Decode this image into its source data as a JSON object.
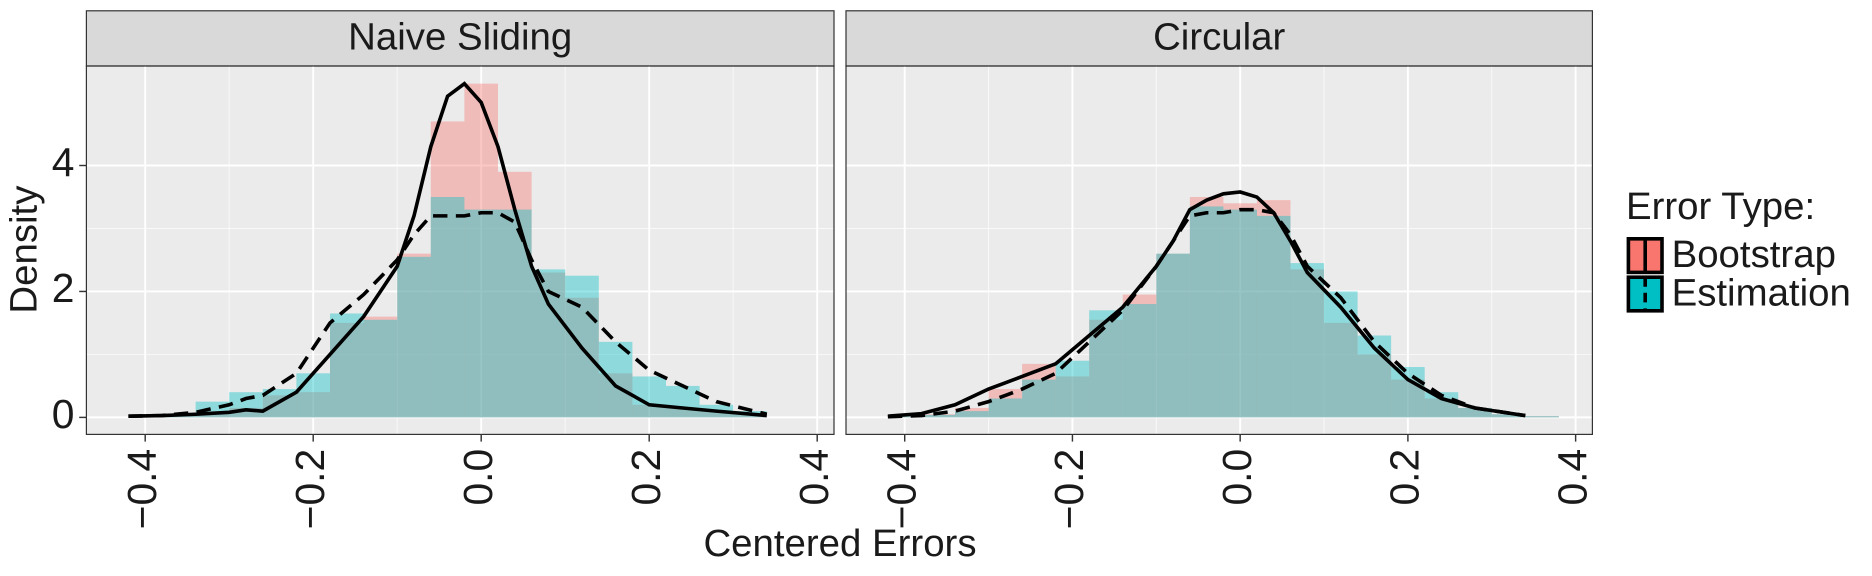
{
  "x_label": "Centered Errors",
  "y_label": "Density",
  "legend_title": "Error Type:",
  "chart_data": [
    {
      "type": "histogram",
      "title": "Naive Sliding",
      "bins": [
        -0.42,
        -0.38,
        -0.34,
        -0.3,
        -0.26,
        -0.22,
        -0.18,
        -0.14,
        -0.1,
        -0.06,
        -0.02,
        0.02,
        0.06,
        0.1,
        0.14,
        0.18,
        0.22,
        0.26,
        0.3,
        0.34,
        0.38
      ],
      "xlim": [
        -0.47,
        0.42
      ],
      "ylim": [
        -0.27,
        5.58
      ],
      "xticks": [
        {
          "value": -0.4,
          "label": "−0.4"
        },
        {
          "value": -0.2,
          "label": "−0.2"
        },
        {
          "value": 0,
          "label": "0.0"
        },
        {
          "value": 0.2,
          "label": "0.2"
        },
        {
          "value": 0.4,
          "label": "0.4"
        }
      ],
      "yticks": [
        0,
        2,
        4
      ],
      "grid": true,
      "density_x": [
        -0.42,
        -0.38,
        -0.34,
        -0.3,
        -0.28,
        -0.26,
        -0.22,
        -0.18,
        -0.14,
        -0.1,
        -0.08,
        -0.06,
        -0.04,
        -0.02,
        0.0,
        0.02,
        0.04,
        0.06,
        0.08,
        0.12,
        0.16,
        0.2,
        0.24,
        0.28,
        0.34
      ],
      "series": [
        {
          "name": "Bootstrap",
          "color": "#F8766D",
          "dashed": false,
          "values": [
            0.02,
            0.03,
            0.1,
            0.15,
            0.35,
            0.4,
            1.5,
            1.6,
            2.6,
            4.7,
            5.3,
            3.9,
            2.3,
            1.9,
            0.7,
            0.2,
            0.15,
            0.1,
            0.05,
            0.0
          ],
          "density": [
            0.02,
            0.03,
            0.05,
            0.08,
            0.12,
            0.1,
            0.4,
            1.0,
            1.6,
            2.4,
            3.2,
            4.3,
            5.1,
            5.3,
            5.0,
            4.3,
            3.3,
            2.4,
            1.8,
            1.1,
            0.5,
            0.2,
            0.15,
            0.1,
            0.03
          ]
        },
        {
          "name": "Estimation",
          "color": "#00BFC4",
          "dashed": true,
          "values": [
            0.02,
            0.05,
            0.25,
            0.4,
            0.45,
            0.7,
            1.65,
            1.55,
            2.55,
            3.5,
            3.3,
            3.3,
            2.35,
            2.25,
            1.2,
            0.65,
            0.5,
            0.2,
            0.1,
            0.0
          ],
          "density": [
            0.02,
            0.03,
            0.08,
            0.2,
            0.3,
            0.35,
            0.7,
            1.5,
            1.95,
            2.5,
            2.9,
            3.2,
            3.2,
            3.2,
            3.25,
            3.25,
            3.1,
            2.5,
            2.0,
            1.75,
            1.2,
            0.75,
            0.5,
            0.25,
            0.05
          ]
        }
      ]
    },
    {
      "type": "histogram",
      "title": "Circular",
      "bins": [
        -0.42,
        -0.38,
        -0.34,
        -0.3,
        -0.26,
        -0.22,
        -0.18,
        -0.14,
        -0.1,
        -0.06,
        -0.02,
        0.02,
        0.06,
        0.1,
        0.14,
        0.18,
        0.22,
        0.26,
        0.3,
        0.34,
        0.38
      ],
      "xlim": [
        -0.47,
        0.42
      ],
      "ylim": [
        -0.27,
        5.58
      ],
      "xticks": [
        {
          "value": -0.4,
          "label": "−0.4"
        },
        {
          "value": -0.2,
          "label": "−0.2"
        },
        {
          "value": 0,
          "label": "0.0"
        },
        {
          "value": 0.2,
          "label": "0.2"
        },
        {
          "value": 0.4,
          "label": "0.4"
        }
      ],
      "yticks": [
        0,
        2,
        4
      ],
      "grid": true,
      "density_x": [
        -0.42,
        -0.38,
        -0.34,
        -0.3,
        -0.28,
        -0.26,
        -0.22,
        -0.18,
        -0.14,
        -0.1,
        -0.08,
        -0.06,
        -0.04,
        -0.02,
        0.0,
        0.02,
        0.04,
        0.06,
        0.08,
        0.12,
        0.16,
        0.2,
        0.24,
        0.28,
        0.34
      ],
      "series": [
        {
          "name": "Bootstrap",
          "color": "#F8766D",
          "dashed": false,
          "values": [
            0.02,
            0.05,
            0.15,
            0.45,
            0.85,
            0.65,
            1.55,
            1.95,
            2.6,
            3.5,
            3.4,
            3.45,
            2.35,
            1.5,
            1.0,
            0.6,
            0.3,
            0.15,
            0.05,
            0.02
          ],
          "density": [
            0.02,
            0.06,
            0.2,
            0.45,
            0.55,
            0.65,
            0.85,
            1.3,
            1.75,
            2.4,
            2.8,
            3.3,
            3.45,
            3.55,
            3.58,
            3.5,
            3.25,
            2.8,
            2.3,
            1.75,
            1.1,
            0.6,
            0.3,
            0.15,
            0.03
          ]
        },
        {
          "name": "Estimation",
          "color": "#00BFC4",
          "dashed": true,
          "values": [
            0.02,
            0.04,
            0.1,
            0.3,
            0.6,
            0.9,
            1.7,
            1.8,
            2.6,
            3.35,
            3.3,
            3.2,
            2.45,
            2.0,
            1.3,
            0.8,
            0.4,
            0.15,
            0.05,
            0.02
          ],
          "density": [
            0.01,
            0.03,
            0.1,
            0.25,
            0.35,
            0.45,
            0.7,
            1.2,
            1.7,
            2.4,
            2.8,
            3.2,
            3.25,
            3.25,
            3.3,
            3.3,
            3.25,
            2.9,
            2.4,
            1.9,
            1.2,
            0.7,
            0.35,
            0.15,
            0.03
          ]
        }
      ]
    }
  ]
}
